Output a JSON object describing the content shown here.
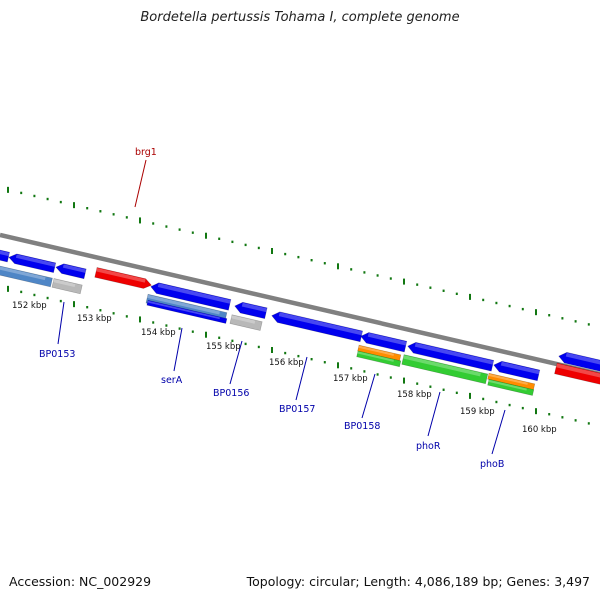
{
  "title": "Bordetella pertussis Tohama I, complete genome",
  "footer": {
    "accession": "Accession: NC_002929",
    "stats": "Topology: circular; Length: 4,086,189 bp; Genes: 3,497"
  },
  "colors": {
    "backbone": "#808080",
    "cds_blue": "#0000ee",
    "cds_red": "#ee0000",
    "rna_orange": "#ff8c00",
    "rna_green": "#33cc33",
    "gray": "#b8b8b8",
    "steel": "#4f86c6",
    "tick": "#117711",
    "label_blue": "#0000aa",
    "label_red": "#aa0000"
  },
  "scale_labels": [
    "152 kbp",
    "153 kbp",
    "154 kbp",
    "155 kbp",
    "156 kbp",
    "157 kbp",
    "158 kbp",
    "159 kbp",
    "160 kbp"
  ],
  "gene_labels": [
    {
      "id": "brg1",
      "text": "brg1",
      "color": "red"
    },
    {
      "id": "BP0153",
      "text": "BP0153",
      "color": "blue"
    },
    {
      "id": "serA",
      "text": "serA",
      "color": "blue"
    },
    {
      "id": "BP0156",
      "text": "BP0156",
      "color": "blue"
    },
    {
      "id": "BP0157",
      "text": "BP0157",
      "color": "blue"
    },
    {
      "id": "BP0158",
      "text": "BP0158",
      "color": "blue"
    },
    {
      "id": "phoR",
      "text": "phoR",
      "color": "blue"
    },
    {
      "id": "phoB",
      "text": "phoB",
      "color": "blue"
    }
  ]
}
